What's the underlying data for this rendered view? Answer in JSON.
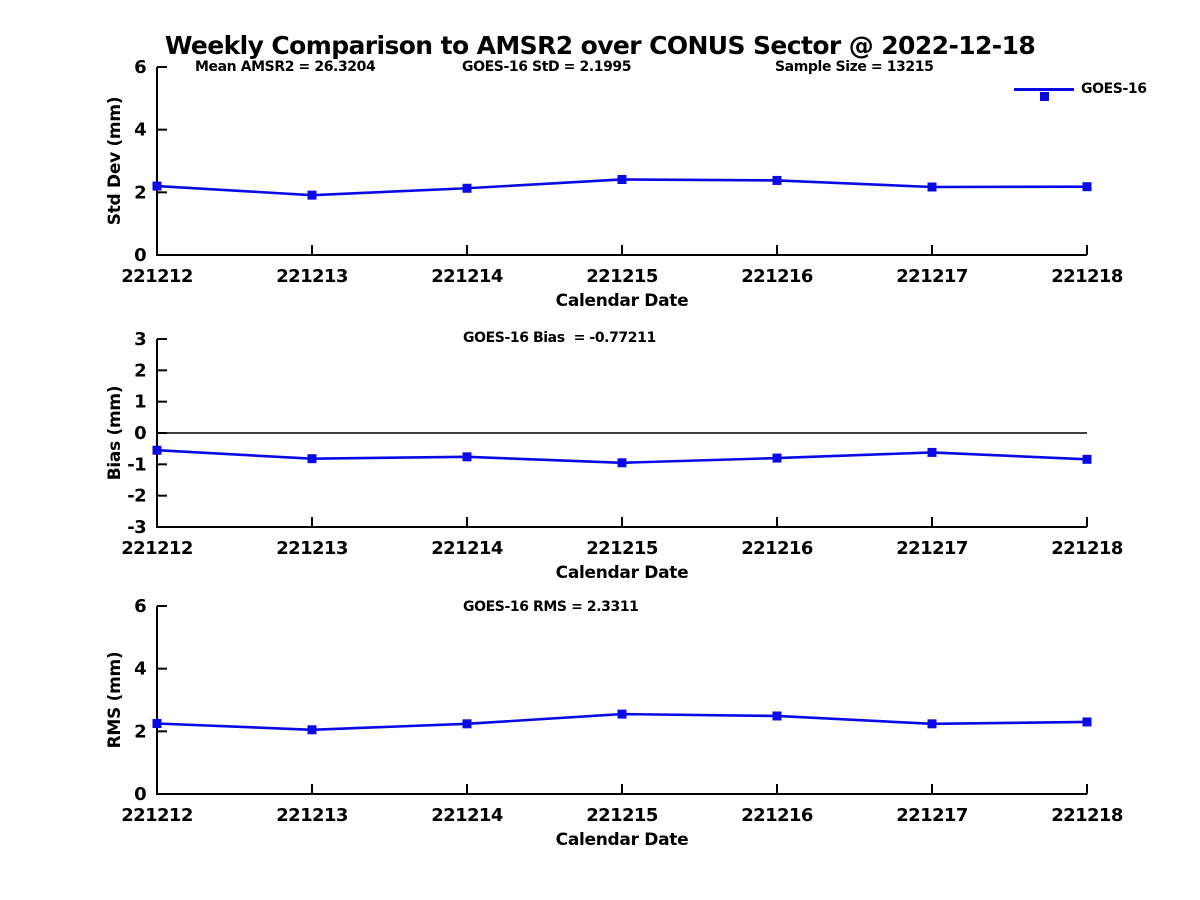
{
  "figure_title": "Weekly Comparison to AMSR2 over CONUS Sector @ 2022-12-18",
  "colors": {
    "series_line": "#0a0ae6",
    "axis": "#000000",
    "zero_line": "#000000",
    "background": "#ffffff"
  },
  "legend": {
    "label": "GOES-16",
    "position": "top-right",
    "marker": "filled-square"
  },
  "chart_data": [
    {
      "type": "line",
      "id": "std-dev",
      "annotations": [
        "Mean AMSR2 = 26.3204",
        "GOES-16 StD = 2.1995",
        "Sample Size = 13215"
      ],
      "categories": [
        "221212",
        "221213",
        "221214",
        "221215",
        "221216",
        "221217",
        "221218"
      ],
      "series": [
        {
          "name": "GOES-16",
          "values": [
            2.2,
            1.91,
            2.13,
            2.41,
            2.38,
            2.17,
            2.18
          ]
        }
      ],
      "xlabel": "Calendar Date",
      "ylabel": "Std Dev (mm)",
      "ylim": [
        0,
        6
      ],
      "yticks": [
        0,
        2,
        4,
        6
      ],
      "grid": false,
      "zero_line": false
    },
    {
      "type": "line",
      "id": "bias",
      "title": "GOES-16 Bias  = -0.77211",
      "categories": [
        "221212",
        "221213",
        "221214",
        "221215",
        "221216",
        "221217",
        "221218"
      ],
      "series": [
        {
          "name": "GOES-16",
          "values": [
            -0.55,
            -0.82,
            -0.76,
            -0.95,
            -0.8,
            -0.62,
            -0.84
          ]
        }
      ],
      "xlabel": "Calendar Date",
      "ylabel": "Bias (mm)",
      "ylim": [
        -3,
        3
      ],
      "yticks": [
        3,
        2,
        1,
        0,
        -1,
        -2,
        -3
      ],
      "grid": false,
      "zero_line": true
    },
    {
      "type": "line",
      "id": "rms",
      "title": "GOES-16 RMS = 2.3311",
      "categories": [
        "221212",
        "221213",
        "221214",
        "221215",
        "221216",
        "221217",
        "221218"
      ],
      "series": [
        {
          "name": "GOES-16",
          "values": [
            2.25,
            2.05,
            2.24,
            2.55,
            2.49,
            2.24,
            2.3
          ]
        }
      ],
      "xlabel": "Calendar Date",
      "ylabel": "RMS (mm)",
      "ylim": [
        0,
        6
      ],
      "yticks": [
        0,
        2,
        4,
        6
      ],
      "grid": false,
      "zero_line": false
    }
  ]
}
